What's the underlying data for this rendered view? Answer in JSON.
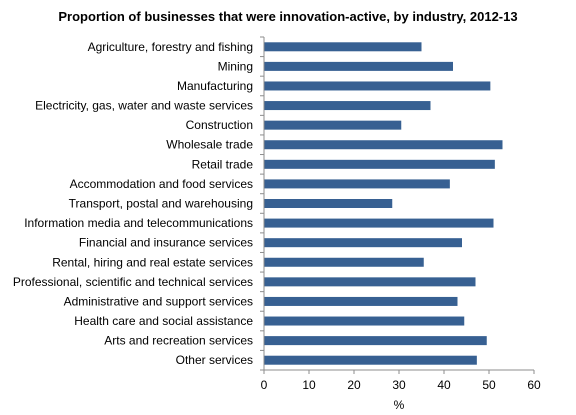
{
  "chart_data": {
    "type": "bar",
    "orientation": "horizontal",
    "title": "Proportion of businesses that were innovation-active, by industry, 2012-13",
    "xlabel": "%",
    "ylabel": "",
    "xlim": [
      0,
      60
    ],
    "xticks": [
      "0",
      "10",
      "20",
      "30",
      "40",
      "50",
      "60"
    ],
    "grid": false,
    "legend": "none",
    "bar_color": "#376092",
    "categories": [
      "Agriculture, forestry and fishing",
      "Mining",
      "Manufacturing",
      "Electricity, gas, water and waste services",
      "Construction",
      "Wholesale trade",
      "Retail trade",
      "Accommodation and food services",
      "Transport, postal and warehousing",
      "Information media and telecommunications",
      "Financial and insurance services",
      "Rental, hiring and real estate services",
      "Professional, scientific and technical services",
      "Administrative and support services",
      "Health care and social assistance",
      "Arts and recreation services",
      "Other services"
    ],
    "values": [
      35,
      42,
      50.3,
      37,
      30.5,
      53,
      51.3,
      41.3,
      28.5,
      51,
      44,
      35.5,
      47,
      43,
      44.5,
      49.5,
      47.3
    ]
  }
}
